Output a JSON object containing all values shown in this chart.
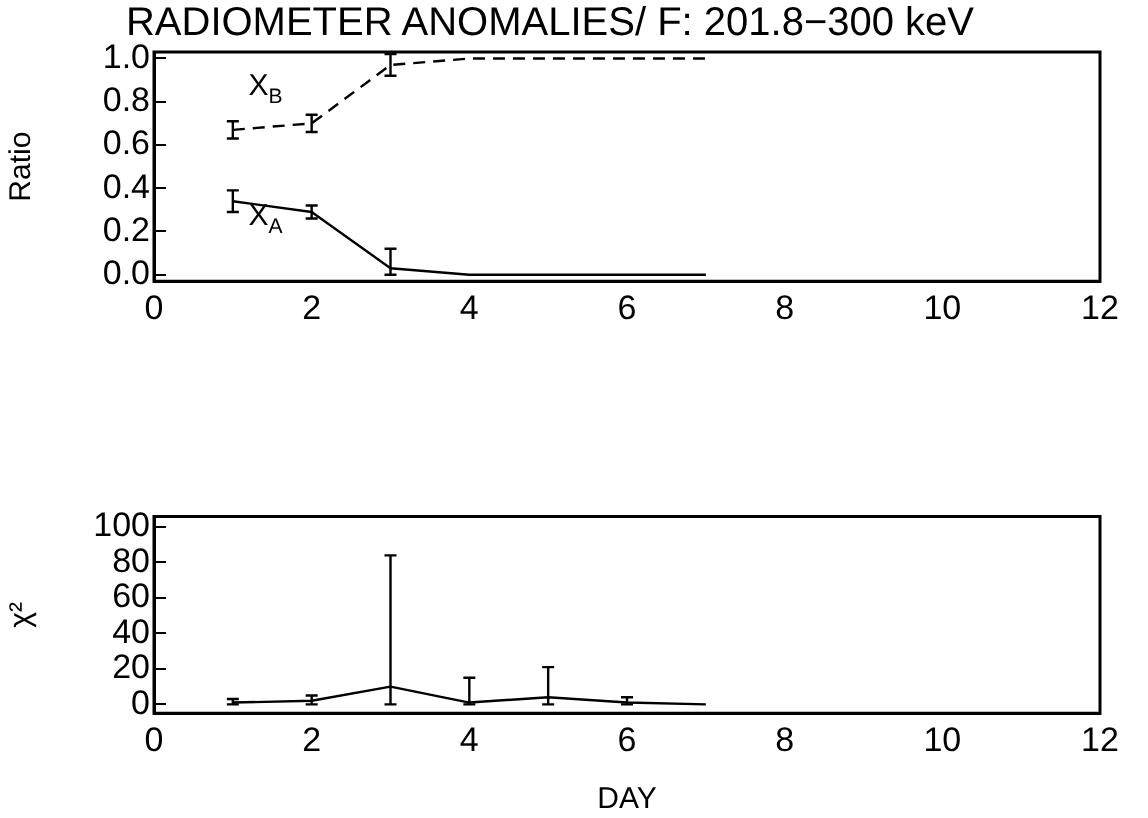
{
  "chart_data": [
    {
      "type": "line",
      "title": "RADIOMETER ANOMALIES/ F: 201.8−300 keV",
      "ylabel": "Ratio",
      "x": [
        1,
        2,
        3,
        4,
        5,
        6,
        7
      ],
      "series": [
        {
          "color": "#000000",
          "line_style": "solid",
          "values": [
            0.34,
            0.29,
            0.03,
            0.0,
            0.0,
            0.0,
            0.0
          ],
          "errors": [
            0.05,
            0.03,
            [
              0.0,
              0.12
            ],
            null,
            null,
            null,
            null
          ]
        },
        {
          "color": "#000000",
          "line_style": "dashed",
          "values": [
            0.67,
            0.7,
            0.97,
            1.0,
            1.0,
            1.0,
            1.0
          ],
          "errors": [
            0.04,
            0.04,
            0.05,
            null,
            null,
            null,
            null
          ]
        }
      ],
      "annotations": [
        "X$_{B}$",
        "X$_{A}$"
      ],
      "xlim": [
        0,
        12
      ],
      "xticks": [
        0,
        2,
        4,
        6,
        8,
        10,
        12
      ],
      "ylim": [
        -0.03,
        1.03
      ],
      "yticks": [
        {
          "value": 0,
          "label": "0.0"
        },
        0.2,
        0.4,
        0.6,
        0.8,
        {
          "value": 1,
          "label": "1.0"
        }
      ],
      "grid": false,
      "legend": false,
      "marker": "none"
    },
    {
      "type": "line",
      "ylabel": "χ²",
      "xlabel": "DAY",
      "x": [
        1,
        2,
        3,
        4,
        5,
        6,
        7
      ],
      "series": [
        {
          "color": "#000000",
          "line_style": "solid",
          "values": [
            1,
            2,
            10,
            1,
            4,
            1,
            0
          ],
          "errors": [
            [
              0,
              3
            ],
            [
              0,
              5
            ],
            [
              0,
              84
            ],
            [
              0,
              15
            ],
            [
              0,
              21
            ],
            [
              0,
              4
            ],
            null
          ]
        }
      ],
      "xlim": [
        0,
        12
      ],
      "xticks": [
        0,
        2,
        4,
        6,
        8,
        10,
        12
      ],
      "ylim": [
        -5,
        106
      ],
      "yticks": [
        0,
        20,
        40,
        60,
        80,
        100
      ],
      "grid": false,
      "legend": false,
      "marker": "none"
    }
  ]
}
